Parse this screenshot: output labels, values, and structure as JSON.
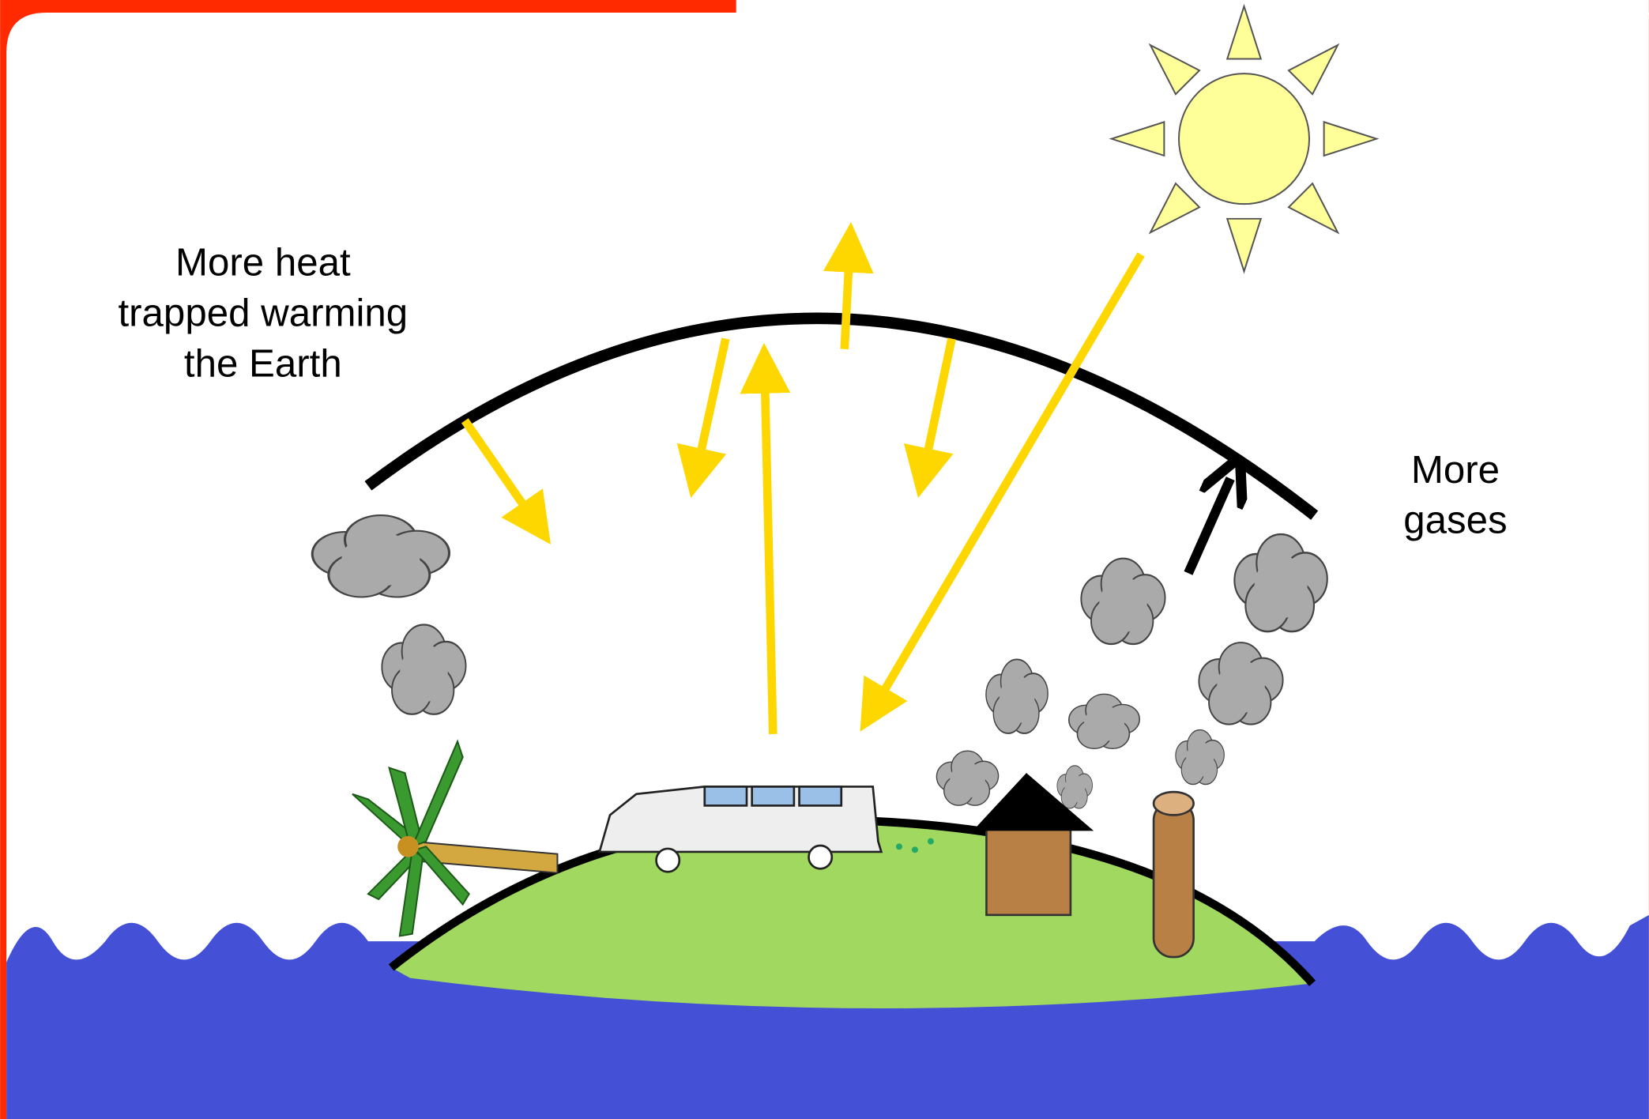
{
  "heat_label": [
    "More heat",
    "trapped warming",
    "the Earth"
  ],
  "gases_label": [
    "More",
    "gases"
  ]
}
